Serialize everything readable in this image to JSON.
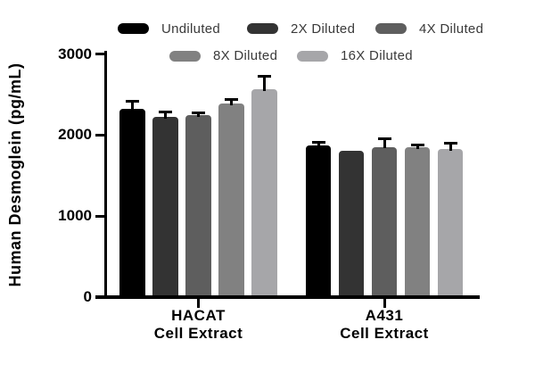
{
  "chart_data": {
    "type": "bar",
    "title": "",
    "xlabel": "",
    "ylabel": "Human Desmoglein (pg/mL)",
    "ylim": [
      0,
      3000
    ],
    "yticks": [
      0,
      1000,
      2000,
      3000
    ],
    "grid": false,
    "legend_position": "top",
    "background_color": "#ffffff",
    "axis_color": "#000000",
    "categories": [
      "HACAT\nCell Extract",
      "A431\nCell Extract"
    ],
    "series": [
      {
        "name": "Undiluted",
        "color": "#000000",
        "values": [
          2320,
          1875
        ],
        "errors": [
          100,
          45
        ]
      },
      {
        "name": "2X Diluted",
        "color": "#333333",
        "values": [
          2225,
          1805
        ],
        "errors": [
          65,
          0
        ]
      },
      {
        "name": "4X Diluted",
        "color": "#5e5e5e",
        "values": [
          2250,
          1855
        ],
        "errors": [
          25,
          110
        ]
      },
      {
        "name": "8X Diluted",
        "color": "#818181",
        "values": [
          2385,
          1850
        ],
        "errors": [
          55,
          30
        ]
      },
      {
        "name": "16X Diluted",
        "color": "#a6a6a9",
        "values": [
          2565,
          1830
        ],
        "errors": [
          170,
          75
        ]
      }
    ]
  }
}
